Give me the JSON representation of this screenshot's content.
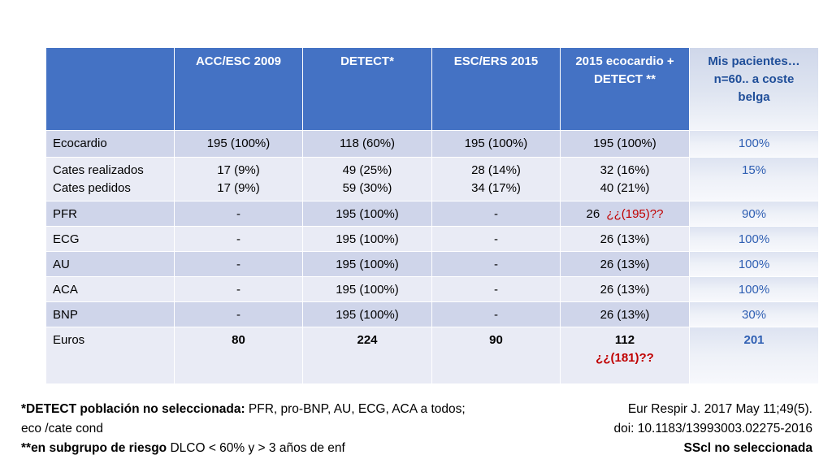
{
  "table": {
    "headers": [
      "",
      "ACC/ESC 2009",
      "DETECT*",
      "ESC/ERS 2015",
      "2015 ecocardio + DETECT **",
      "Mis pacientes…n=60.. a coste belga"
    ],
    "rows": [
      {
        "label": "Ecocardio",
        "cells": [
          "195 (100%)",
          "118 (60%)",
          "195 (100%)",
          "195 (100%)",
          "100%"
        ]
      },
      {
        "label_line1": "Cates realizados",
        "label_line2": "Cates pedidos",
        "cells_line1": [
          "17 (9%)",
          "49 (25%)",
          "28 (14%)",
          "32 (16%)",
          "15%"
        ],
        "cells_line2": [
          "17 (9%)",
          "59 (30%)",
          "34 (17%)",
          "40 (21%)",
          ""
        ]
      },
      {
        "label": "PFR",
        "cells": [
          "-",
          "195 (100%)",
          "-",
          "26",
          "90%"
        ],
        "note": "¿¿(195)??"
      },
      {
        "label": "ECG",
        "cells": [
          "-",
          "195 (100%)",
          "-",
          "26 (13%)",
          "100%"
        ]
      },
      {
        "label": "AU",
        "cells": [
          "-",
          "195 (100%)",
          "-",
          "26 (13%)",
          "100%"
        ]
      },
      {
        "label": "ACA",
        "cells": [
          "-",
          "195 (100%)",
          "-",
          "26 (13%)",
          "100%"
        ]
      },
      {
        "label": "BNP",
        "cells": [
          "-",
          "195 (100%)",
          "-",
          "26 (13%)",
          "30%"
        ]
      },
      {
        "label": "Euros",
        "cells": [
          "80",
          "224",
          "90",
          "112",
          "201"
        ],
        "note": "¿¿(181)??"
      }
    ]
  },
  "footnote": {
    "line1_bold": "*DETECT población no seleccionada:",
    "line1_rest": " PFR, pro-BNP, AU, ECG, ACA a todos;",
    "line2": "eco /cate cond",
    "line3_bold": "**en subgrupo de riesgo",
    "line3_rest": " DLCO < 60% y > 3 años de enf"
  },
  "reference": {
    "line1": "Eur Respir J. 2017 May 11;49(5).",
    "line2": "doi: 10.1183/13993003.02275-2016",
    "line3": "SScl no seleccionada"
  },
  "colors": {
    "header_blue": "#4472c4",
    "row_dark": "#cfd5ea",
    "row_light": "#e9ebf5",
    "note_red": "#c00000",
    "last_col_text": "#2f5fb3"
  }
}
